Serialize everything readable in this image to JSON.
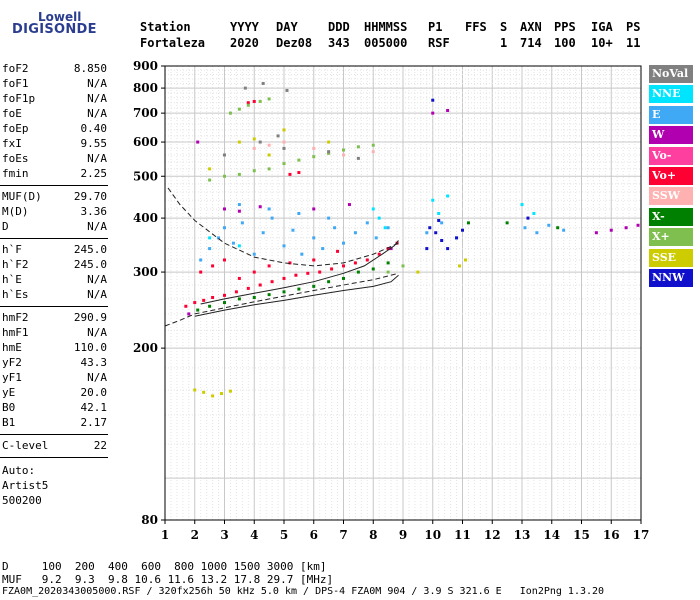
{
  "brand": {
    "line1": "Lowell",
    "line2": "DIGISONDE"
  },
  "header": {
    "labels": [
      "Station",
      "YYYY",
      "DAY",
      "DDD",
      "HHMMSS",
      "P1",
      "FFS",
      "S",
      "AXN",
      "PPS",
      "IGA",
      "PS"
    ],
    "values": [
      "Fortaleza",
      "2020",
      "Dez08",
      "343",
      "005000",
      "RSF",
      "1",
      "714",
      "100",
      "10+",
      "11"
    ]
  },
  "params": {
    "g1": [
      {
        "name": "foF2",
        "value": "8.850"
      },
      {
        "name": "foF1",
        "value": "N/A"
      },
      {
        "name": "foF1p",
        "value": "N/A"
      },
      {
        "name": "foE",
        "value": "N/A"
      },
      {
        "name": "foEp",
        "value": "0.40"
      },
      {
        "name": "fxI",
        "value": "9.55"
      },
      {
        "name": "foEs",
        "value": "N/A"
      },
      {
        "name": "fmin",
        "value": "2.25"
      }
    ],
    "g2": [
      {
        "name": "MUF(D)",
        "value": "29.70"
      },
      {
        "name": "M(D)",
        "value": "3.36"
      },
      {
        "name": "D",
        "value": "N/A"
      }
    ],
    "g3": [
      {
        "name": "h`F",
        "value": "245.0"
      },
      {
        "name": "h`F2",
        "value": "245.0"
      },
      {
        "name": "h`E",
        "value": "N/A"
      },
      {
        "name": "h`Es",
        "value": "N/A"
      }
    ],
    "g4": [
      {
        "name": "hmF2",
        "value": "290.9"
      },
      {
        "name": "hmF1",
        "value": "N/A"
      },
      {
        "name": "hmE",
        "value": "110.0"
      },
      {
        "name": "yF2",
        "value": "43.3"
      },
      {
        "name": "yF1",
        "value": "N/A"
      },
      {
        "name": "yE",
        "value": "20.0"
      },
      {
        "name": "B0",
        "value": "42.1"
      },
      {
        "name": "B1",
        "value": "2.17"
      }
    ],
    "clevel": {
      "name": "C-level",
      "value": "22"
    },
    "auto": [
      "Auto:",
      "Artist5",
      "500200"
    ]
  },
  "bottom": {
    "d_line": "D     100  200  400  600  800 1000 1500 3000 [km]",
    "muf_line": "MUF   9.2  9.3  9.8 10.6 11.6 13.2 17.8 29.7 [MHz]",
    "file_line": "FZA0M_2020343005000.RSF / 320fx256h 50 kHz 5.0 km / DPS-4 FZA0M 904 / 3.9 S 321.6 E   Ion2Png 1.3.20"
  },
  "legend": [
    {
      "label": "NoVal",
      "color": "#808080"
    },
    {
      "label": "NNE",
      "color": "#00e5ff"
    },
    {
      "label": "E",
      "color": "#3fa9f5"
    },
    {
      "label": "W",
      "color": "#b000b0"
    },
    {
      "label": "Vo-",
      "color": "#ff3fa0"
    },
    {
      "label": "Vo+",
      "color": "#ff0033"
    },
    {
      "label": "SSW",
      "color": "#ffb0b0"
    },
    {
      "label": "X-",
      "color": "#008000"
    },
    {
      "label": "X+",
      "color": "#7fbf4f"
    },
    {
      "label": "SSE",
      "color": "#cccc00"
    },
    {
      "label": "NNW",
      "color": "#1010cc"
    }
  ],
  "chart_data": {
    "type": "scatter",
    "title": "",
    "xlabel": "",
    "ylabel": "",
    "xlim": [
      1,
      17
    ],
    "ylim": [
      80,
      900
    ],
    "y_scale": "log",
    "x_ticks": [
      1,
      2,
      3,
      4,
      5,
      6,
      7,
      8,
      9,
      10,
      11,
      12,
      13,
      14,
      15,
      16,
      17
    ],
    "y_ticks": [
      80,
      200,
      300,
      400,
      500,
      600,
      700,
      800,
      900
    ],
    "grid": true,
    "legend_position": "right",
    "series": [
      {
        "color": "#ff0033",
        "points": [
          [
            1.7,
            250
          ],
          [
            2.0,
            255
          ],
          [
            2.3,
            258
          ],
          [
            2.6,
            262
          ],
          [
            3.0,
            265
          ],
          [
            3.4,
            270
          ],
          [
            3.8,
            275
          ],
          [
            4.2,
            280
          ],
          [
            4.6,
            285
          ],
          [
            5.0,
            290
          ],
          [
            5.4,
            295
          ],
          [
            5.8,
            298
          ],
          [
            6.2,
            300
          ],
          [
            6.6,
            305
          ],
          [
            7.0,
            310
          ],
          [
            7.4,
            315
          ],
          [
            7.8,
            320
          ],
          [
            8.2,
            330
          ],
          [
            8.5,
            340
          ],
          [
            8.8,
            350
          ],
          [
            2.2,
            300
          ],
          [
            2.6,
            310
          ],
          [
            3.0,
            320
          ],
          [
            3.5,
            290
          ],
          [
            4.0,
            300
          ],
          [
            4.5,
            310
          ],
          [
            5.2,
            315
          ],
          [
            6.0,
            320
          ],
          [
            6.8,
            335
          ],
          [
            3.8,
            740
          ],
          [
            4.0,
            745
          ],
          [
            5.5,
            510
          ],
          [
            5.2,
            505
          ]
        ]
      },
      {
        "color": "#3fa9f5",
        "points": [
          [
            2.2,
            320
          ],
          [
            2.5,
            340
          ],
          [
            2.8,
            360
          ],
          [
            3.0,
            380
          ],
          [
            3.3,
            350
          ],
          [
            3.6,
            390
          ],
          [
            4.0,
            330
          ],
          [
            4.3,
            370
          ],
          [
            4.6,
            400
          ],
          [
            5.0,
            345
          ],
          [
            5.3,
            375
          ],
          [
            5.6,
            330
          ],
          [
            6.0,
            360
          ],
          [
            6.3,
            340
          ],
          [
            6.7,
            380
          ],
          [
            7.0,
            350
          ],
          [
            7.4,
            370
          ],
          [
            7.8,
            390
          ],
          [
            8.1,
            360
          ],
          [
            8.5,
            380
          ],
          [
            9.8,
            370
          ],
          [
            10.3,
            390
          ],
          [
            10.8,
            360
          ],
          [
            13.1,
            380
          ],
          [
            13.5,
            370
          ],
          [
            13.9,
            385
          ],
          [
            14.4,
            375
          ],
          [
            3.5,
            430
          ],
          [
            4.5,
            420
          ],
          [
            5.5,
            410
          ],
          [
            6.5,
            400
          ]
        ]
      },
      {
        "color": "#00e5ff",
        "points": [
          [
            8.0,
            420
          ],
          [
            8.2,
            400
          ],
          [
            8.4,
            380
          ],
          [
            10.0,
            440
          ],
          [
            10.2,
            410
          ],
          [
            10.5,
            450
          ],
          [
            13.0,
            430
          ],
          [
            13.4,
            410
          ],
          [
            2.5,
            360
          ],
          [
            3.5,
            345
          ]
        ]
      },
      {
        "color": "#b000b0",
        "points": [
          [
            1.8,
            240
          ],
          [
            3.0,
            420
          ],
          [
            3.5,
            415
          ],
          [
            4.2,
            425
          ],
          [
            6.0,
            420
          ],
          [
            7.2,
            430
          ],
          [
            8.6,
            340
          ],
          [
            15.5,
            370
          ],
          [
            16.0,
            375
          ],
          [
            16.5,
            380
          ],
          [
            16.9,
            385
          ],
          [
            10.0,
            700
          ],
          [
            10.5,
            710
          ],
          [
            2.1,
            600
          ]
        ]
      },
      {
        "color": "#1010cc",
        "points": [
          [
            9.9,
            380
          ],
          [
            10.1,
            370
          ],
          [
            10.3,
            355
          ],
          [
            10.5,
            340
          ],
          [
            10.8,
            360
          ],
          [
            11.0,
            375
          ],
          [
            13.2,
            400
          ],
          [
            9.8,
            340
          ],
          [
            10.2,
            395
          ],
          [
            10.0,
            750
          ]
        ]
      },
      {
        "color": "#7fbf4f",
        "points": [
          [
            3.2,
            700
          ],
          [
            3.5,
            715
          ],
          [
            3.8,
            730
          ],
          [
            4.2,
            745
          ],
          [
            4.5,
            755
          ],
          [
            2.5,
            490
          ],
          [
            3.0,
            500
          ],
          [
            3.5,
            505
          ],
          [
            4.0,
            515
          ],
          [
            4.5,
            520
          ],
          [
            5.0,
            535
          ],
          [
            5.5,
            545
          ],
          [
            6.0,
            555
          ],
          [
            6.5,
            565
          ],
          [
            7.0,
            575
          ],
          [
            7.5,
            585
          ],
          [
            8.0,
            590
          ],
          [
            8.5,
            300
          ],
          [
            9.0,
            310
          ]
        ]
      },
      {
        "color": "#008000",
        "points": [
          [
            2.1,
            245
          ],
          [
            2.5,
            250
          ],
          [
            3.0,
            255
          ],
          [
            3.5,
            260
          ],
          [
            4.0,
            262
          ],
          [
            4.5,
            266
          ],
          [
            5.0,
            270
          ],
          [
            5.5,
            274
          ],
          [
            6.0,
            278
          ],
          [
            6.5,
            285
          ],
          [
            7.0,
            290
          ],
          [
            7.5,
            300
          ],
          [
            8.0,
            305
          ],
          [
            8.5,
            315
          ],
          [
            14.2,
            380
          ],
          [
            12.5,
            390
          ],
          [
            11.2,
            390
          ]
        ]
      },
      {
        "color": "#cccc00",
        "points": [
          [
            2.0,
            160
          ],
          [
            2.3,
            158
          ],
          [
            2.6,
            155
          ],
          [
            2.9,
            157
          ],
          [
            3.2,
            159
          ],
          [
            10.9,
            310
          ],
          [
            11.1,
            320
          ],
          [
            9.5,
            300
          ],
          [
            3.5,
            600
          ],
          [
            4.0,
            610
          ],
          [
            5.0,
            640
          ],
          [
            6.5,
            600
          ],
          [
            2.5,
            520
          ],
          [
            4.5,
            560
          ]
        ]
      },
      {
        "color": "#ffb0b0",
        "points": [
          [
            4.0,
            580
          ],
          [
            4.5,
            590
          ],
          [
            5.0,
            600
          ],
          [
            6.0,
            580
          ],
          [
            7.0,
            560
          ],
          [
            8.0,
            570
          ]
        ]
      },
      {
        "color": "#808080",
        "points": [
          [
            3.0,
            560
          ],
          [
            4.2,
            600
          ],
          [
            5.0,
            580
          ],
          [
            6.5,
            570
          ],
          [
            7.5,
            550
          ],
          [
            3.7,
            800
          ],
          [
            4.3,
            820
          ],
          [
            5.1,
            790
          ],
          [
            4.8,
            620
          ]
        ]
      }
    ],
    "curves": [
      {
        "style": "solid",
        "points": [
          [
            2.0,
            237
          ],
          [
            3.0,
            245
          ],
          [
            4.0,
            252
          ],
          [
            5.0,
            258
          ],
          [
            6.0,
            265
          ],
          [
            7.0,
            272
          ],
          [
            8.0,
            278
          ],
          [
            8.6,
            285
          ],
          [
            8.85,
            295
          ]
        ]
      },
      {
        "style": "solid",
        "points": [
          [
            2.2,
            253
          ],
          [
            3.0,
            260
          ],
          [
            4.0,
            268
          ],
          [
            5.0,
            276
          ],
          [
            6.0,
            285
          ],
          [
            7.0,
            298
          ],
          [
            7.7,
            310
          ],
          [
            8.3,
            330
          ],
          [
            8.7,
            345
          ],
          [
            8.85,
            355
          ]
        ]
      },
      {
        "style": "dashed",
        "points": [
          [
            1.1,
            470
          ],
          [
            1.5,
            430
          ],
          [
            2.0,
            395
          ],
          [
            3.0,
            350
          ],
          [
            4.0,
            325
          ],
          [
            5.0,
            315
          ],
          [
            6.0,
            310
          ],
          [
            7.0,
            315
          ],
          [
            8.0,
            330
          ],
          [
            8.85,
            350
          ]
        ]
      },
      {
        "style": "dashed",
        "points": [
          [
            1.0,
            225
          ],
          [
            1.5,
            232
          ],
          [
            2.0,
            240
          ],
          [
            3.0,
            248
          ],
          [
            4.0,
            256
          ],
          [
            5.0,
            264
          ],
          [
            6.0,
            272
          ],
          [
            7.0,
            280
          ],
          [
            8.0,
            288
          ],
          [
            8.85,
            298
          ]
        ]
      }
    ]
  }
}
